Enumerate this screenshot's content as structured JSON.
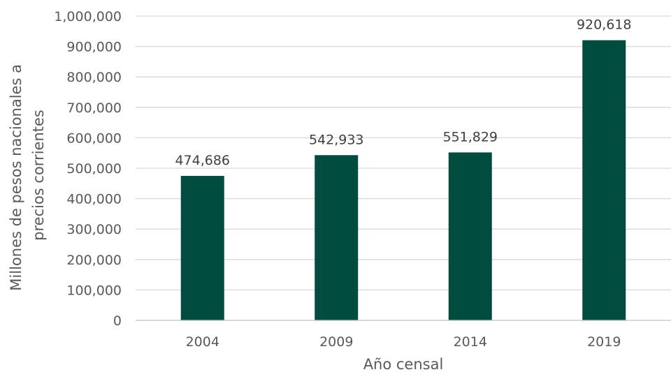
{
  "chart_data": {
    "type": "bar",
    "categories": [
      "2004",
      "2009",
      "2014",
      "2019"
    ],
    "series": [
      {
        "values": [
          474686,
          542933,
          551829,
          920618
        ]
      }
    ],
    "data_labels": [
      "474,686",
      "542,933",
      "551,829",
      "920,618"
    ],
    "xlabel": "Año censal",
    "ylabel_lines": [
      "Millones de pesos nacionales a",
      "precios corrientes"
    ],
    "ylim": [
      0,
      1000000
    ],
    "yticks": [
      0,
      100000,
      200000,
      300000,
      400000,
      500000,
      600000,
      700000,
      800000,
      900000,
      1000000
    ],
    "ytick_labels": [
      "0",
      "100,000",
      "200,000",
      "300,000",
      "400,000",
      "500,000",
      "600,000",
      "700,000",
      "800,000",
      "900,000",
      "1,000,000"
    ],
    "grid": true,
    "legend": "none",
    "bar_color": "#004C3F"
  }
}
